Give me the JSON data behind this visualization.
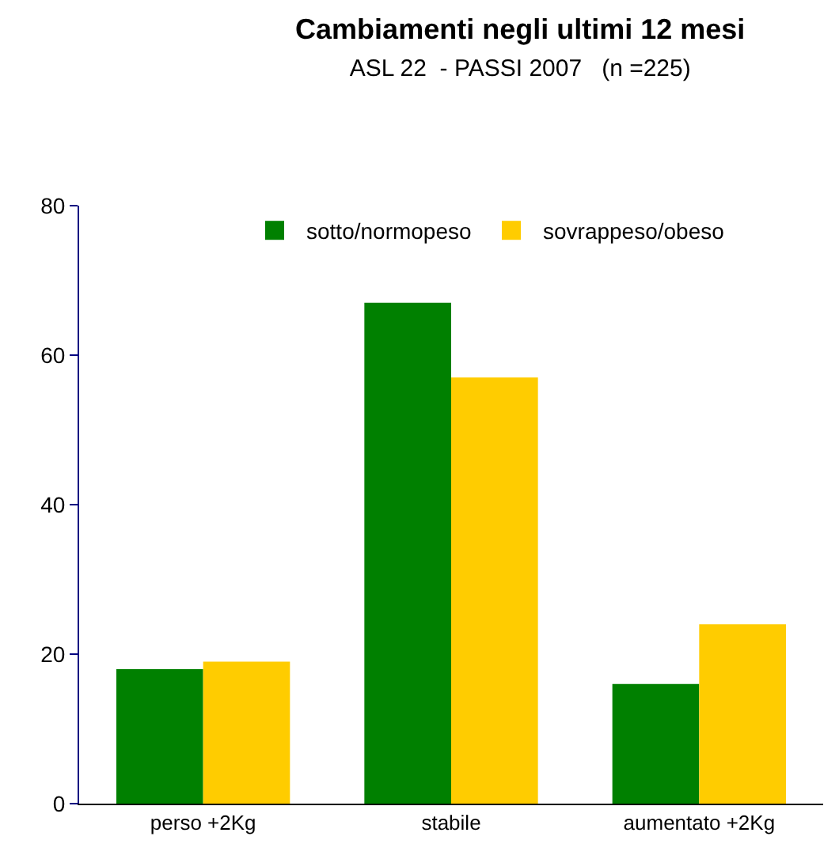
{
  "chart_data": {
    "type": "bar",
    "title": "Cambiamenti negli ultimi 12 mesi",
    "subtitle": "ASL 22  - PASSI 2007   (n =225)",
    "categories": [
      "perso +2Kg",
      "stabile",
      "aumentato +2Kg"
    ],
    "series": [
      {
        "name": "sotto/normopeso",
        "color": "#008000",
        "values": [
          18,
          67,
          16
        ]
      },
      {
        "name": "sovrappeso/obeso",
        "color": "#ffcc00",
        "values": [
          19,
          57,
          24
        ]
      }
    ],
    "ylim": [
      0,
      80
    ],
    "yticks": [
      0,
      20,
      40,
      60,
      80
    ],
    "legend": "top"
  }
}
